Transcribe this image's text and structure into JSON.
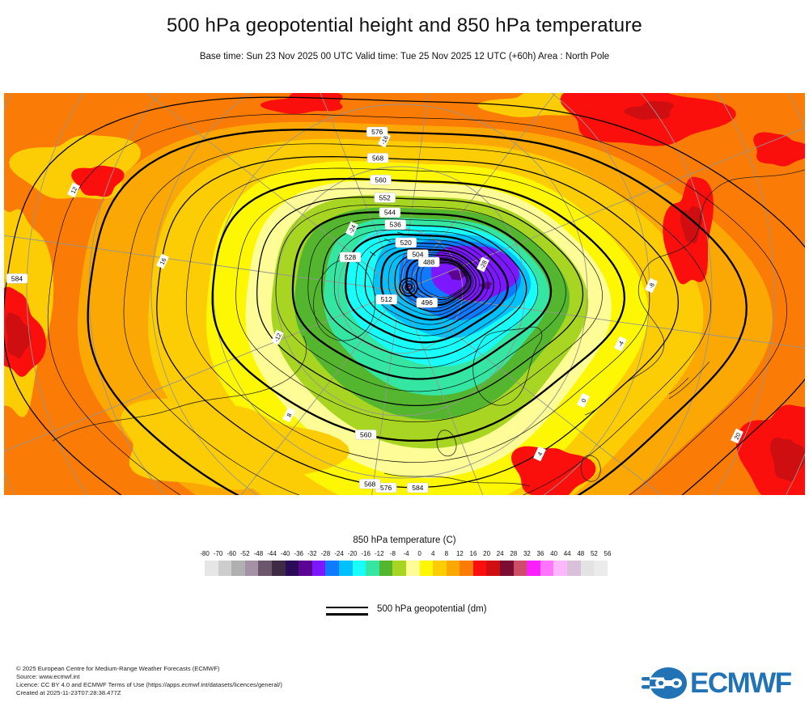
{
  "header": {
    "title": "500 hPa geopotential height and 850 hPa temperature",
    "subtitle": "Base time: Sun 23 Nov 2025 00 UTC Valid time: Tue 25 Nov 2025 12 UTC (+60h) Area : North Pole"
  },
  "chart_data": {
    "type": "heatmap",
    "projection": "north polar stereographic",
    "area": "North Pole",
    "base_time": "Sun 23 Nov 2025 00 UTC",
    "valid_time": "Tue 25 Nov 2025 12 UTC (+60h)",
    "step": "+60h",
    "fields": [
      {
        "name": "850 hPa temperature",
        "units": "C",
        "style": "filled shading"
      },
      {
        "name": "500 hPa geopotential",
        "units": "dm",
        "style": "black contour lines"
      }
    ],
    "temperature_scale": {
      "ticks": [
        -80,
        -70,
        -60,
        -52,
        -48,
        -44,
        -40,
        -36,
        -32,
        -28,
        -24,
        -20,
        -16,
        -12,
        -8,
        -4,
        0,
        4,
        8,
        12,
        16,
        20,
        24,
        28,
        32,
        36,
        40,
        44,
        48,
        52,
        56
      ],
      "colors": [
        "#e6e6e6",
        "#cdcdcd",
        "#b0b0b0",
        "#a591a5",
        "#6b566b",
        "#3f2a45",
        "#2b0a57",
        "#5c0494",
        "#7d17ff",
        "#0f7afc",
        "#00c1fb",
        "#19fdfa",
        "#35e5a2",
        "#53b62e",
        "#a8d522",
        "#fdfc96",
        "#fdf703",
        "#fccc05",
        "#fba805",
        "#fb7b07",
        "#fb0f0c",
        "#ce0e11",
        "#7d0c33",
        "#cb4d68",
        "#fb20fb",
        "#fd74fd",
        "#fdb8fd",
        "#d9c2d9",
        "#e3e3e3",
        "#ebebeb"
      ]
    },
    "geopotential_contours": {
      "labeled_levels": [
        584,
        576,
        568,
        560,
        552,
        544,
        536,
        528,
        520,
        512,
        504,
        496,
        488
      ],
      "contour_interval_dm": 4,
      "outer_level_dm": 584,
      "inner_level_dm": 484
    },
    "temp_contour_labels": [
      12,
      16,
      8,
      4,
      0,
      -4,
      -8,
      -16,
      -24,
      -28,
      20,
      -12
    ],
    "summary": "Warm orange/red air (8 to 20 C) around the map edges, cold core (-28 to -36 C, blue/purple) over the Arctic with a deep 500 hPa low near the pole; trough of low heights extends south over northern Europe."
  },
  "legend": {
    "temperature_title": "850 hPa temperature (C)",
    "geopotential_label": "500 hPa geopotential (dm)"
  },
  "footer": {
    "lines": [
      "© 2025 European Centre for Medium-Range Weather Forecasts (ECMWF)",
      "Source: www.ecmwf.int",
      "Licence: CC BY 4.0 and ECMWF Terms of Use (https://apps.ecmwf.int/datasets/licences/general/)",
      "Created at 2025-11-23T07:28:38.477Z"
    ],
    "logo_text": "ECMWF",
    "logo_color": "#2173b6"
  }
}
